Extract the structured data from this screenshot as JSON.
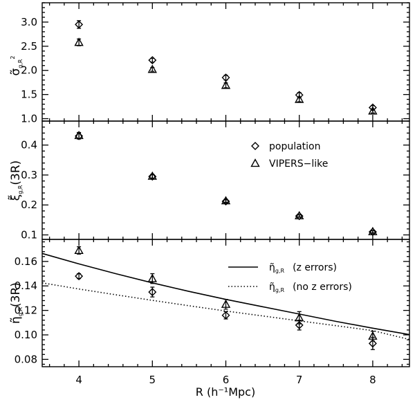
{
  "chart_data": [
    {
      "type": "scatter",
      "ylabel": "σ̃",
      "ylabel_sub": "g,R",
      "ylabel_sup": "2",
      "xlim": [
        3.5,
        8.5
      ],
      "ylim": [
        0.95,
        3.4
      ],
      "yticks": [
        "1.0",
        "1.5",
        "2.0",
        "2.5",
        "3.0"
      ],
      "ytick_values": [
        1.0,
        1.5,
        2.0,
        2.5,
        3.0
      ],
      "series": [
        {
          "name": "population",
          "marker": "diamond",
          "x": [
            4,
            5,
            6,
            7,
            8
          ],
          "y": [
            2.95,
            2.21,
            1.85,
            1.49,
            1.23
          ],
          "err": [
            0.08,
            0.04,
            0.05,
            0.05,
            0.04
          ]
        },
        {
          "name": "VIPERS-like",
          "marker": "triangle",
          "x": [
            4,
            5,
            6,
            7,
            8
          ],
          "y": [
            2.58,
            2.02,
            1.69,
            1.4,
            1.16
          ],
          "err": [
            0.07,
            0.04,
            0.05,
            0.05,
            0.04
          ]
        }
      ]
    },
    {
      "type": "scatter",
      "ylabel": "ξ̃",
      "ylabel_sub": "g,R",
      "ylabel_arg": "(3R)",
      "xlim": [
        3.5,
        8.5
      ],
      "ylim": [
        0.085,
        0.48
      ],
      "yticks": [
        "0.1",
        "0.2",
        "0.3",
        "0.4"
      ],
      "ytick_values": [
        0.1,
        0.2,
        0.3,
        0.4
      ],
      "legend": {
        "position": "center-right",
        "entries": [
          "population",
          "VIPERS−like"
        ]
      },
      "series": [
        {
          "name": "population",
          "marker": "diamond",
          "x": [
            4,
            5,
            6,
            7,
            8
          ],
          "y": [
            0.43,
            0.295,
            0.212,
            0.163,
            0.11
          ],
          "err": [
            0.01,
            0.006,
            0.005,
            0.004,
            0.004
          ]
        },
        {
          "name": "VIPERS-like",
          "marker": "triangle",
          "x": [
            4,
            5,
            6,
            7,
            8
          ],
          "y": [
            0.432,
            0.296,
            0.214,
            0.164,
            0.111
          ],
          "err": [
            0.01,
            0.006,
            0.005,
            0.004,
            0.004
          ]
        }
      ]
    },
    {
      "type": "scatter",
      "ylabel": "η̃",
      "ylabel_sub": "g,R",
      "ylabel_arg": "(3R)",
      "xlabel": "R (h⁻¹Mpc)",
      "xticks": [
        "4",
        "5",
        "6",
        "7",
        "8"
      ],
      "xtick_values": [
        4,
        5,
        6,
        7,
        8
      ],
      "xlim": [
        3.5,
        8.5
      ],
      "ylim": [
        0.074,
        0.178
      ],
      "yticks": [
        "0.08",
        "0.10",
        "0.12",
        "0.14",
        "0.16"
      ],
      "ytick_values": [
        0.08,
        0.1,
        0.12,
        0.14,
        0.16
      ],
      "legend": {
        "position": "top-right",
        "entries": [
          {
            "symbol": "η̃",
            "sub": "g,R",
            "text": "(z errors)",
            "style": "solid"
          },
          {
            "symbol": "η̃",
            "sub": "g,R",
            "text": "(no z errors)",
            "style": "dotted"
          }
        ]
      },
      "series": [
        {
          "name": "population",
          "marker": "diamond",
          "x": [
            4,
            5,
            6,
            7,
            8
          ],
          "y": [
            0.148,
            0.135,
            0.116,
            0.108,
            0.093
          ],
          "err": [
            0.002,
            0.004,
            0.003,
            0.004,
            0.005
          ]
        },
        {
          "name": "VIPERS-like",
          "marker": "triangle",
          "x": [
            4,
            5,
            6,
            7,
            8
          ],
          "y": [
            0.169,
            0.146,
            0.125,
            0.114,
            0.099
          ],
          "err": [
            0.003,
            0.004,
            0.004,
            0.005,
            0.004
          ]
        }
      ],
      "curves": [
        {
          "name": "z errors",
          "style": "solid",
          "x": [
            3.5,
            4,
            4.5,
            5,
            5.5,
            6,
            6.5,
            7,
            7.5,
            8,
            8.5
          ],
          "y": [
            0.1665,
            0.158,
            0.15,
            0.1425,
            0.1355,
            0.129,
            0.123,
            0.117,
            0.111,
            0.1055,
            0.1002
          ]
        },
        {
          "name": "no z errors",
          "style": "dotted",
          "x": [
            3.5,
            4,
            4.5,
            5,
            5.5,
            6,
            6.5,
            7,
            7.5,
            8,
            8.5
          ],
          "y": [
            0.1425,
            0.1375,
            0.1328,
            0.1282,
            0.1238,
            0.1195,
            0.1155,
            0.1115,
            0.1075,
            0.1035,
            0.0962
          ]
        }
      ]
    }
  ]
}
